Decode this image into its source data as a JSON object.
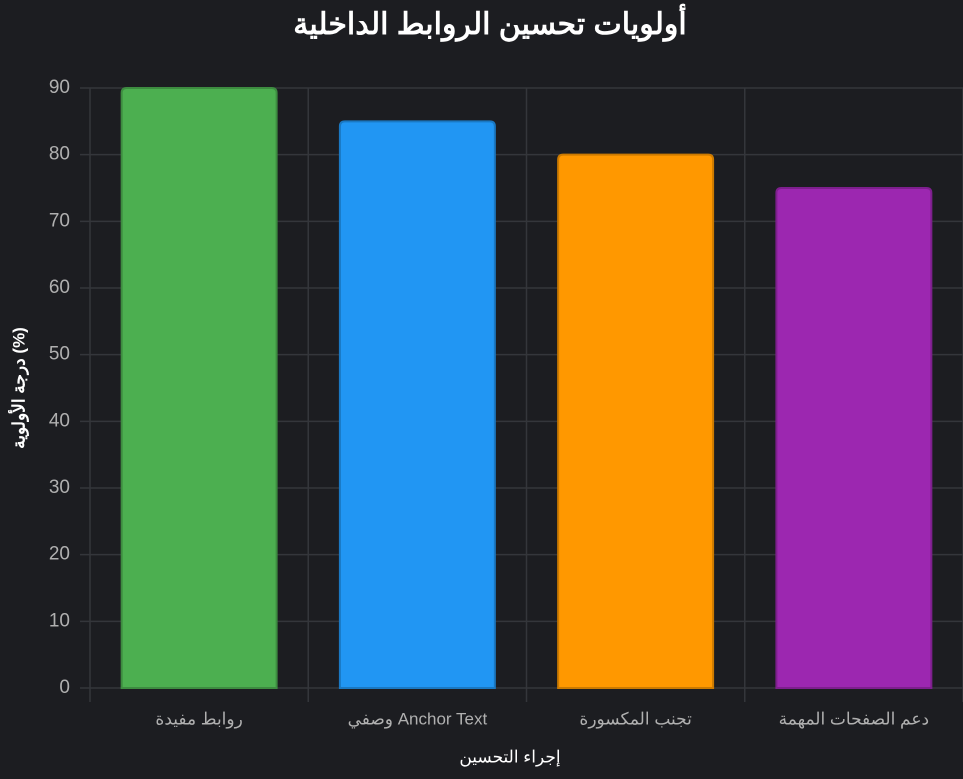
{
  "chart_data": {
    "type": "bar",
    "title": "أولويات تحسين الروابط الداخلية",
    "x_label": "إجراء التحسين",
    "y_label": "درجة الأولوية (%)",
    "categories": [
      "روابط مفيدة",
      "وصفي Anchor Text",
      "تجنب المكسورة",
      "دعم الصفحات المهمة"
    ],
    "values": [
      90,
      85,
      80,
      75
    ],
    "colors": [
      "#4caf50",
      "#2196f3",
      "#ff9800",
      "#9c27b0"
    ],
    "ylim": [
      0,
      90
    ],
    "yticks": [
      0,
      10,
      20,
      30,
      40,
      50,
      60,
      70,
      80,
      90
    ],
    "grid": true
  }
}
